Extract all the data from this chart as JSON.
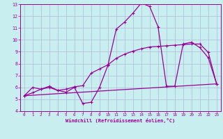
{
  "xlabel": "Windchill (Refroidissement éolien,°C)",
  "background_color": "#c8eef0",
  "grid_color": "#b0b8d8",
  "line_color": "#990099",
  "xlim": [
    -0.5,
    23.5
  ],
  "ylim": [
    4,
    13
  ],
  "xticks": [
    0,
    1,
    2,
    3,
    4,
    5,
    6,
    7,
    8,
    9,
    10,
    11,
    12,
    13,
    14,
    15,
    16,
    17,
    18,
    19,
    20,
    21,
    22,
    23
  ],
  "yticks": [
    4,
    5,
    6,
    7,
    8,
    9,
    10,
    11,
    12,
    13
  ],
  "curve1_x": [
    0,
    1,
    2,
    3,
    4,
    5,
    6,
    7,
    8,
    9,
    10,
    11,
    12,
    13,
    14,
    15,
    16,
    17,
    18,
    19,
    20,
    21,
    22,
    23
  ],
  "curve1_y": [
    5.3,
    6.0,
    5.85,
    6.1,
    5.75,
    5.6,
    6.0,
    4.65,
    4.75,
    6.0,
    7.85,
    10.9,
    11.5,
    12.25,
    13.1,
    12.8,
    11.1,
    6.1,
    6.1,
    9.65,
    9.8,
    9.35,
    8.5,
    6.3
  ],
  "curve2_x": [
    0,
    1,
    2,
    3,
    4,
    5,
    6,
    7,
    8,
    9,
    10,
    11,
    12,
    13,
    14,
    15,
    16,
    17,
    18,
    19,
    20,
    21,
    22,
    23
  ],
  "curve2_y": [
    5.3,
    5.55,
    5.85,
    6.0,
    5.75,
    5.85,
    6.05,
    6.15,
    7.2,
    7.55,
    7.9,
    8.45,
    8.8,
    9.05,
    9.25,
    9.4,
    9.45,
    9.5,
    9.55,
    9.6,
    9.65,
    9.65,
    8.95,
    6.3
  ],
  "curve3_x": [
    0,
    23
  ],
  "curve3_y": [
    5.3,
    6.3
  ]
}
